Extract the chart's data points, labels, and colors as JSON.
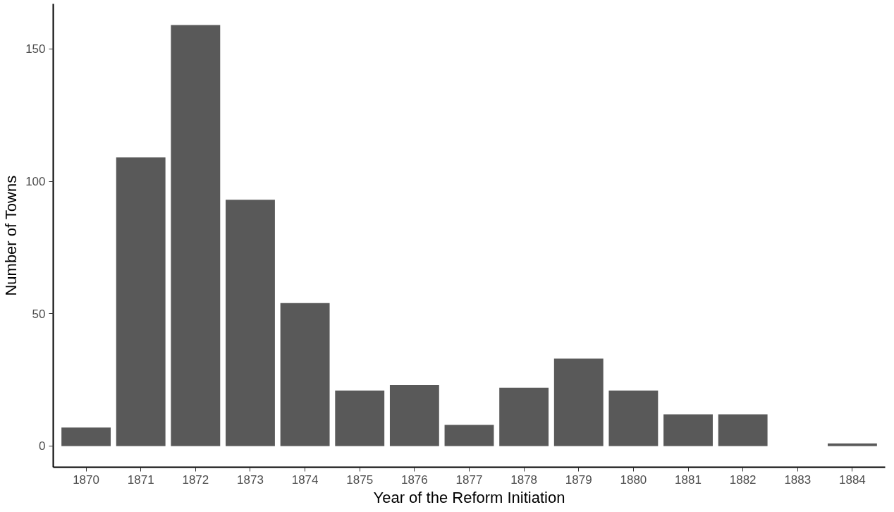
{
  "chart_data": {
    "type": "bar",
    "xlabel": "Year of the Reform Initiation",
    "ylabel": "Number of Towns",
    "categories": [
      "1870",
      "1871",
      "1872",
      "1873",
      "1874",
      "1875",
      "1876",
      "1877",
      "1878",
      "1879",
      "1880",
      "1881",
      "1882",
      "1883",
      "1884"
    ],
    "values": [
      7,
      109,
      159,
      93,
      54,
      21,
      23,
      8,
      22,
      33,
      21,
      12,
      12,
      0,
      1
    ],
    "color": "#595959",
    "ylim": [
      -8,
      167
    ],
    "yticks": [
      0,
      50,
      100,
      150
    ]
  }
}
